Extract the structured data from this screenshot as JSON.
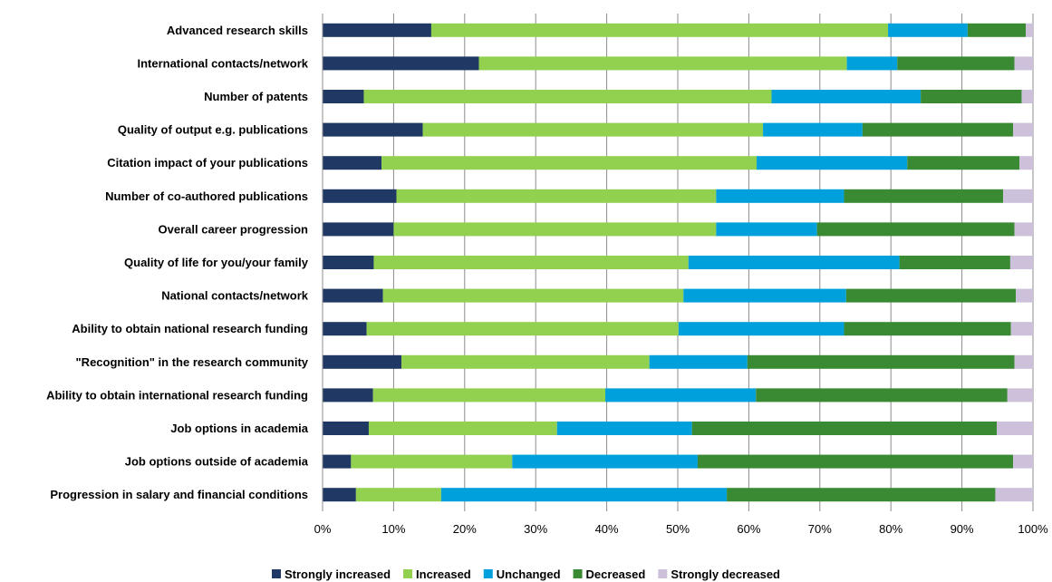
{
  "chart_data": {
    "type": "bar",
    "orientation": "horizontal",
    "stacked": "percent",
    "categories": [
      "Advanced research skills",
      "International contacts/network",
      "Number of patents",
      "Quality of output e.g. publications",
      "Citation impact of your publications",
      "Number of co-authored publications",
      "Overall career progression",
      "Quality of life for you/your family",
      "National contacts/network",
      "Ability to obtain national research funding",
      "\"Recognition\" in the research community",
      "Ability to obtain international research funding",
      "Job options in academia",
      "Job options outside of academia",
      "Progression in salary and financial conditions"
    ],
    "series": [
      {
        "name": "Strongly increased",
        "color": "#1f3864",
        "values": [
          15.3,
          22.0,
          5.8,
          14.1,
          8.3,
          10.4,
          10.0,
          7.2,
          8.5,
          6.2,
          11.1,
          7.1,
          6.5,
          4.0,
          4.7
        ]
      },
      {
        "name": "Increased",
        "color": "#92d050",
        "values": [
          64.3,
          51.8,
          57.4,
          47.9,
          52.8,
          45.0,
          45.4,
          44.3,
          42.3,
          43.9,
          34.9,
          32.7,
          26.5,
          22.7,
          12.0
        ]
      },
      {
        "name": "Unchanged",
        "color": "#00a0dc",
        "values": [
          11.2,
          7.1,
          21.0,
          14.0,
          21.2,
          18.0,
          14.2,
          29.7,
          22.9,
          23.3,
          13.8,
          21.2,
          19.0,
          26.1,
          40.2
        ]
      },
      {
        "name": "Decreased",
        "color": "#3a8a34",
        "values": [
          8.2,
          16.5,
          14.2,
          21.2,
          15.8,
          22.4,
          27.8,
          15.6,
          23.9,
          23.5,
          37.6,
          35.4,
          42.9,
          44.4,
          37.8
        ]
      },
      {
        "name": "Strongly decreased",
        "color": "#ccc0da",
        "values": [
          1.0,
          2.6,
          1.6,
          2.8,
          1.9,
          4.2,
          2.6,
          3.2,
          2.4,
          3.1,
          2.6,
          3.6,
          5.1,
          2.8,
          5.3
        ]
      }
    ],
    "xticks": [
      "0%",
      "10%",
      "20%",
      "30%",
      "40%",
      "50%",
      "60%",
      "70%",
      "80%",
      "90%",
      "100%"
    ],
    "xlim": [
      0,
      100
    ],
    "grid": true,
    "legend_position": "bottom"
  }
}
